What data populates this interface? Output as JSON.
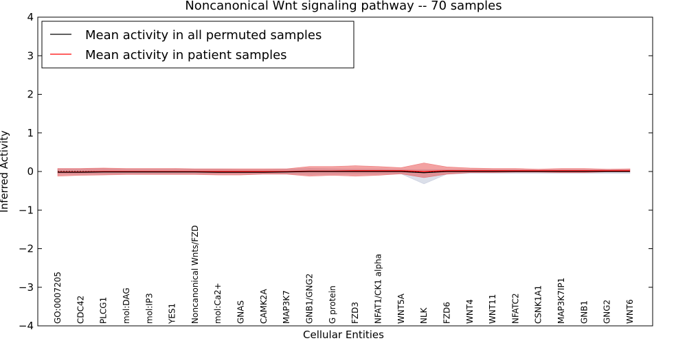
{
  "chart_data": {
    "type": "line",
    "title": "Noncanonical Wnt signaling pathway -- 70 samples",
    "xlabel": "Cellular Entities",
    "ylabel": "Inferred Activity",
    "ylim": [
      -4,
      4
    ],
    "yticks": [
      4,
      3,
      2,
      1,
      0,
      -1,
      -2,
      -3,
      -4
    ],
    "ytick_labels": [
      "4",
      "3",
      "2",
      "1",
      "0",
      "−1",
      "−2",
      "−3",
      "−4"
    ],
    "grid": false,
    "legend_position": "top-left",
    "categories": [
      "GO:0007205",
      "CDC42",
      "PLCG1",
      "mol:DAG",
      "mol:IP3",
      "YES1",
      "Noncanonical Wnts/FZD",
      "mol:Ca2+",
      "GNAS",
      "CAMK2A",
      "MAP3K7",
      "GNB1/GNG2",
      "G protein",
      "FZD3",
      "NFAT1/CK1 alpha",
      "WNT5A",
      "NLK",
      "FZD6",
      "WNT4",
      "WNT11",
      "NFATC2",
      "CSNK1A1",
      "MAP3K7IP1",
      "GNB1",
      "GNG2",
      "WNT6"
    ],
    "series": [
      {
        "name": "Mean activity in all permuted samples",
        "color": "#000000",
        "values": [
          -0.02,
          -0.02,
          -0.01,
          -0.01,
          -0.01,
          -0.01,
          -0.01,
          -0.02,
          -0.02,
          -0.02,
          -0.01,
          0.0,
          0.0,
          0.0,
          0.0,
          0.0,
          -0.03,
          0.0,
          0.0,
          0.0,
          0.0,
          0.0,
          0.0,
          0.0,
          0.0,
          0.0
        ],
        "band_upper": [
          0.07,
          0.07,
          0.07,
          0.06,
          0.06,
          0.06,
          0.06,
          0.06,
          0.05,
          0.05,
          0.06,
          0.08,
          0.07,
          0.06,
          0.06,
          0.05,
          0.05,
          0.05,
          0.05,
          0.05,
          0.05,
          0.04,
          0.05,
          0.05,
          0.05,
          0.05
        ],
        "band_lower": [
          -0.07,
          -0.07,
          -0.07,
          -0.06,
          -0.06,
          -0.06,
          -0.06,
          -0.06,
          -0.06,
          -0.06,
          -0.06,
          -0.08,
          -0.07,
          -0.07,
          -0.07,
          -0.06,
          -0.32,
          -0.07,
          -0.05,
          -0.05,
          -0.05,
          -0.05,
          -0.05,
          -0.05,
          -0.05,
          -0.05
        ],
        "band_color": "#b0b8cf"
      },
      {
        "name": "Mean activity in patient samples",
        "color": "#ff0000",
        "values": [
          -0.01,
          -0.01,
          0.0,
          0.0,
          0.0,
          0.0,
          0.0,
          0.0,
          0.0,
          0.0,
          0.0,
          0.01,
          0.01,
          0.02,
          0.02,
          0.02,
          0.0,
          0.02,
          0.02,
          0.02,
          0.02,
          0.02,
          0.02,
          0.02,
          0.02,
          0.02
        ],
        "band_upper": [
          0.08,
          0.08,
          0.09,
          0.08,
          0.08,
          0.08,
          0.07,
          0.07,
          0.07,
          0.07,
          0.07,
          0.13,
          0.13,
          0.15,
          0.13,
          0.1,
          0.22,
          0.12,
          0.09,
          0.08,
          0.08,
          0.06,
          0.08,
          0.08,
          0.06,
          0.07
        ],
        "band_lower": [
          -0.12,
          -0.1,
          -0.09,
          -0.08,
          -0.08,
          -0.08,
          -0.08,
          -0.09,
          -0.09,
          -0.07,
          -0.07,
          -0.12,
          -0.1,
          -0.12,
          -0.1,
          -0.06,
          -0.16,
          -0.07,
          -0.03,
          -0.03,
          -0.02,
          -0.02,
          -0.03,
          -0.03,
          -0.01,
          -0.01
        ],
        "band_color": "#e84545"
      }
    ]
  }
}
